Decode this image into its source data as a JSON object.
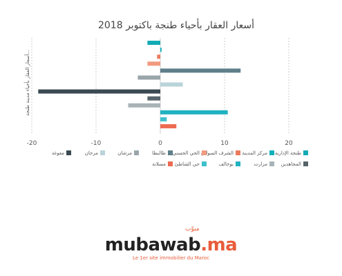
{
  "colors": {
    "series": [
      "#12aab4",
      "#0fb0ba",
      "#ec7a5c",
      "#f29a80",
      "#5f7f8a",
      "#9aa6ab",
      "#b9d4da",
      "#3b4a52",
      "#56646b",
      "#a8b3b8",
      "#20b2c0",
      "#3fc0cc",
      "#ec6b52"
    ],
    "grid": "#cccccc",
    "text": "#555555"
  },
  "chart_data": {
    "type": "bar",
    "orientation": "horizontal",
    "title": "أسعار العقار بأحياء طنجة باكتوبر 2018",
    "ylabel": "أسعار العقار بأحياء مدينة طنجة...",
    "xlabel": "",
    "xlim": [
      -20,
      20
    ],
    "xticks": [
      "-20",
      "-10",
      "0",
      "10",
      "20"
    ],
    "grid": "vertical",
    "legend_position": "bottom",
    "series": [
      {
        "name": "طنجة الإدارية",
        "value": -2
      },
      {
        "name": "مركز المدينة",
        "value": 0.2
      },
      {
        "name": "الشرف السواني",
        "value": -0.5
      },
      {
        "name": "الحي الحسني",
        "value": -2
      },
      {
        "name": "طالبطا",
        "value": 12.5
      },
      {
        "name": "مرشان",
        "value": -3.5
      },
      {
        "name": "مرجان",
        "value": 3.5
      },
      {
        "name": "مغوغة",
        "value": -19
      },
      {
        "name": "المجاهدين",
        "value": -2
      },
      {
        "name": "مزارت",
        "value": -5
      },
      {
        "name": "بوخالف",
        "value": 10.5
      },
      {
        "name": "حي الشاطئ",
        "value": 1
      },
      {
        "name": "مسلانة",
        "value": 2.5
      }
    ]
  },
  "branding": {
    "name": "mubawab",
    "tld": ".ma",
    "arabic": "مبوّب",
    "tagline": "Le 1er site immobilier du Maroc"
  }
}
